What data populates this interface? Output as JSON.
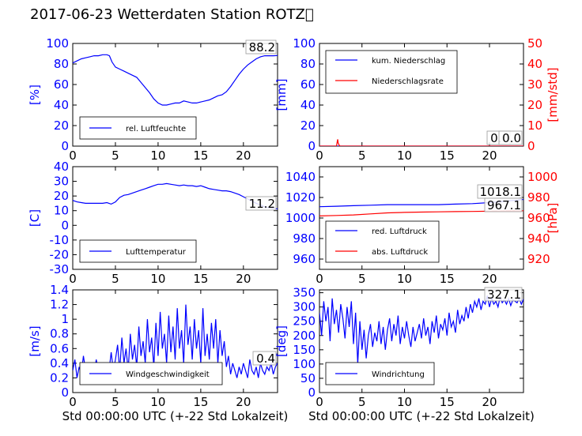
{
  "title": "2017-06-23 Wetterdaten Station ROTZ",
  "title_suffix": "􏰀",
  "xlabel": "Std 00:00:00 UTC (+-22 Std Lokalzeit)",
  "colors": {
    "primary": "#0000ff",
    "secondary": "#ff0000",
    "axes": "#000000"
  },
  "chart_data": [
    {
      "id": "humidity",
      "type": "line",
      "ylabel": "[%]",
      "xlim": [
        0,
        24
      ],
      "ylim": [
        0,
        100
      ],
      "xticks": [
        0,
        5,
        10,
        15,
        20
      ],
      "yticks": [
        0,
        20,
        40,
        60,
        80,
        100
      ],
      "legend": {
        "placement": "lower-left",
        "entries": [
          "rel. Luftfeuchte"
        ]
      },
      "annotations": [
        "88.2"
      ],
      "series": [
        {
          "name": "rel. Luftfeuchte",
          "color": "#0000ff",
          "x": [
            0,
            0.5,
            1,
            1.5,
            2,
            2.5,
            3,
            3.5,
            4,
            4.3,
            4.6,
            5,
            5.5,
            6,
            6.5,
            7,
            7.5,
            8,
            8.5,
            9,
            9.5,
            10,
            10.5,
            11,
            11.5,
            12,
            12.5,
            13,
            13.5,
            14,
            14.5,
            15,
            15.5,
            16,
            16.5,
            17,
            17.5,
            18,
            18.5,
            19,
            19.5,
            20,
            20.5,
            21,
            21.5,
            22,
            22.5,
            23,
            23.5,
            24
          ],
          "y": [
            81,
            83,
            85,
            86,
            87,
            88,
            88,
            89,
            89,
            88,
            82,
            77,
            75,
            73,
            71,
            69,
            67,
            62,
            57,
            52,
            46,
            42,
            40,
            40,
            41,
            42,
            42,
            44,
            43,
            42,
            42,
            43,
            44,
            45,
            47,
            49,
            50,
            53,
            58,
            64,
            70,
            75,
            79,
            82,
            85,
            87,
            88,
            88,
            88,
            88.2
          ]
        }
      ]
    },
    {
      "id": "precipitation",
      "type": "line",
      "ylabel": "[mm]",
      "ylabel_right": "[mm/std]",
      "xlim": [
        0,
        24
      ],
      "ylim": [
        0,
        100
      ],
      "ylim_right": [
        0,
        50
      ],
      "xticks": [
        0,
        5,
        10,
        15,
        20
      ],
      "yticks": [
        0,
        20,
        40,
        60,
        80,
        100
      ],
      "yticks_right": [
        0,
        10,
        20,
        30,
        40,
        50
      ],
      "legend": {
        "placement": "upper-left",
        "entries": [
          "kum. Niederschlag",
          "Niederschlagsrate"
        ]
      },
      "annotations": [
        "0.0",
        "0.0"
      ],
      "series": [
        {
          "name": "kum. Niederschlag",
          "color": "#0000ff",
          "axis": "left",
          "x": [
            0,
            24
          ],
          "y": [
            0,
            0
          ]
        },
        {
          "name": "Niederschlagsrate",
          "color": "#ff0000",
          "axis": "right",
          "x": [
            0,
            2.0,
            2.1,
            2.15,
            2.2,
            2.3,
            2.4,
            24
          ],
          "y": [
            0,
            0,
            2.5,
            3.3,
            1.6,
            0.6,
            0,
            0
          ]
        }
      ]
    },
    {
      "id": "temperature",
      "type": "line",
      "ylabel": "[C]",
      "xlim": [
        0,
        24
      ],
      "ylim": [
        -30,
        40
      ],
      "xticks": [
        0,
        5,
        10,
        15,
        20
      ],
      "yticks": [
        -30,
        -20,
        -10,
        0,
        10,
        20,
        30,
        40
      ],
      "legend": {
        "placement": "lower-left",
        "entries": [
          "Lufttemperatur"
        ]
      },
      "annotations": [
        "11.2"
      ],
      "series": [
        {
          "name": "Lufttemperatur",
          "color": "#0000ff",
          "x": [
            0,
            0.5,
            1,
            1.5,
            2,
            2.5,
            3,
            3.5,
            4,
            4.5,
            5,
            5.5,
            6,
            6.5,
            7,
            7.5,
            8,
            8.5,
            9,
            9.5,
            10,
            10.5,
            11,
            11.5,
            12,
            12.5,
            13,
            13.5,
            14,
            14.5,
            15,
            15.5,
            16,
            16.5,
            17,
            17.5,
            18,
            18.5,
            19,
            19.5,
            20,
            20.5,
            21,
            21.5,
            22,
            22.5,
            23,
            23.5,
            24
          ],
          "y": [
            17,
            16,
            15.5,
            15,
            15,
            15,
            15,
            15,
            15.5,
            14.5,
            16,
            19,
            20.5,
            21,
            22,
            23,
            24,
            25,
            26,
            27,
            28,
            28,
            28.5,
            28,
            27.5,
            27,
            27.5,
            27,
            27,
            26.5,
            27,
            26,
            25,
            24.5,
            24,
            23.5,
            23.5,
            23,
            22,
            21,
            19.5,
            18,
            16.5,
            15,
            14,
            12.5,
            12,
            11.5,
            11.2
          ]
        }
      ]
    },
    {
      "id": "pressure",
      "type": "line",
      "ylabel_right": "[hPa]",
      "xlim": [
        0,
        24
      ],
      "ylim": [
        950,
        1050
      ],
      "ylim_right": [
        910,
        1010
      ],
      "xticks": [
        0,
        5,
        10,
        15,
        20
      ],
      "yticks": [
        960,
        980,
        1000,
        1020,
        1040
      ],
      "yticks_right": [
        920,
        940,
        960,
        980,
        1000
      ],
      "legend": {
        "placement": "lower-left",
        "entries": [
          "red. Luftdruck",
          "abs. Luftdruck"
        ]
      },
      "annotations": [
        "1018.1",
        "967.1"
      ],
      "series": [
        {
          "name": "red. Luftdruck",
          "color": "#0000ff",
          "axis": "left",
          "x": [
            0,
            2,
            4,
            6,
            8,
            10,
            12,
            14,
            16,
            18,
            20,
            22,
            24
          ],
          "y": [
            1011,
            1011.5,
            1012,
            1012.5,
            1013,
            1013,
            1013,
            1013,
            1013.5,
            1014,
            1015,
            1016.5,
            1018.1
          ]
        },
        {
          "name": "abs. Luftdruck",
          "color": "#ff0000",
          "axis": "right",
          "x": [
            0,
            2,
            4,
            6,
            8,
            10,
            12,
            14,
            16,
            18,
            20,
            22,
            24
          ],
          "y": [
            962,
            962.5,
            963,
            964,
            965,
            965.5,
            965.8,
            966,
            966.2,
            966.4,
            966.6,
            966.9,
            967.1
          ]
        }
      ]
    },
    {
      "id": "windspeed",
      "type": "line",
      "ylabel": "[m/s]",
      "xlim": [
        0,
        24
      ],
      "ylim": [
        0,
        1.4
      ],
      "xticks": [
        0,
        5,
        10,
        15,
        20
      ],
      "yticks": [
        0,
        0.2,
        0.4,
        0.6,
        0.8,
        1.0,
        1.2,
        1.4
      ],
      "legend": {
        "placement": "lower-left",
        "entries": [
          "Windgeschwindigkeit"
        ]
      },
      "annotations": [
        "0.4"
      ],
      "series": [
        {
          "name": "Windgeschwindigkeit",
          "color": "#0000ff",
          "x": [
            0,
            0.25,
            0.5,
            0.75,
            1,
            1.25,
            1.5,
            1.75,
            2,
            2.25,
            2.5,
            2.75,
            3,
            3.25,
            3.5,
            3.75,
            4,
            4.25,
            4.5,
            4.75,
            5,
            5.25,
            5.5,
            5.75,
            6,
            6.25,
            6.5,
            6.75,
            7,
            7.25,
            7.5,
            7.75,
            8,
            8.25,
            8.5,
            8.75,
            9,
            9.25,
            9.5,
            9.75,
            10,
            10.25,
            10.5,
            10.75,
            11,
            11.25,
            11.5,
            11.75,
            12,
            12.25,
            12.5,
            12.75,
            13,
            13.25,
            13.5,
            13.75,
            14,
            14.25,
            14.5,
            14.75,
            15,
            15.25,
            15.5,
            15.75,
            16,
            16.25,
            16.5,
            16.75,
            17,
            17.25,
            17.5,
            17.75,
            18,
            18.25,
            18.5,
            18.75,
            19,
            19.25,
            19.5,
            19.75,
            20,
            20.25,
            20.5,
            20.75,
            21,
            21.25,
            21.5,
            21.75,
            22,
            22.25,
            22.5,
            22.75,
            23,
            23.25,
            23.5,
            23.75,
            24
          ],
          "y": [
            0.3,
            0.45,
            0.2,
            0.35,
            0.25,
            0.5,
            0.3,
            0.2,
            0.4,
            0.3,
            0.25,
            0.45,
            0.3,
            0.2,
            0.35,
            0.25,
            0.4,
            0.3,
            0.55,
            0.3,
            0.45,
            0.65,
            0.3,
            0.75,
            0.4,
            0.6,
            0.3,
            0.8,
            0.45,
            0.65,
            0.35,
            0.9,
            0.5,
            0.7,
            0.4,
            1.0,
            0.55,
            0.75,
            0.35,
            0.95,
            0.5,
            1.1,
            0.6,
            0.8,
            0.4,
            1.05,
            0.55,
            0.9,
            0.45,
            1.15,
            0.6,
            0.85,
            0.4,
            1.2,
            0.65,
            0.9,
            0.45,
            1.0,
            0.6,
            0.85,
            0.4,
            1.15,
            0.5,
            0.8,
            0.45,
            0.95,
            0.6,
            1.0,
            0.4,
            0.85,
            0.5,
            0.7,
            0.35,
            0.5,
            0.25,
            0.4,
            0.3,
            0.2,
            0.35,
            0.25,
            0.4,
            0.3,
            0.2,
            0.45,
            0.3,
            0.25,
            0.35,
            0.2,
            0.4,
            0.3,
            0.25,
            0.35,
            0.3,
            0.4,
            0.25,
            0.35,
            0.4
          ]
        }
      ]
    },
    {
      "id": "winddirection",
      "type": "line",
      "ylabel": "[deg]",
      "xlim": [
        0,
        24
      ],
      "ylim": [
        0,
        360
      ],
      "xticks": [
        0,
        5,
        10,
        15,
        20
      ],
      "yticks": [
        0,
        50,
        100,
        150,
        200,
        250,
        300,
        350
      ],
      "legend": {
        "placement": "lower-left",
        "entries": [
          "Windrichtung"
        ]
      },
      "annotations": [
        "327.1"
      ],
      "series": [
        {
          "name": "Windrichtung",
          "color": "#0000ff",
          "x": [
            0,
            0.25,
            0.5,
            0.75,
            1,
            1.25,
            1.5,
            1.75,
            2,
            2.25,
            2.5,
            2.75,
            3,
            3.25,
            3.5,
            3.75,
            4,
            4.25,
            4.5,
            4.75,
            5,
            5.25,
            5.5,
            5.75,
            6,
            6.25,
            6.5,
            6.75,
            7,
            7.25,
            7.5,
            7.75,
            8,
            8.25,
            8.5,
            8.75,
            9,
            9.25,
            9.5,
            9.75,
            10,
            10.25,
            10.5,
            10.75,
            11,
            11.25,
            11.5,
            11.75,
            12,
            12.25,
            12.5,
            12.75,
            13,
            13.25,
            13.5,
            13.75,
            14,
            14.25,
            14.5,
            14.75,
            15,
            15.25,
            15.5,
            15.75,
            16,
            16.25,
            16.5,
            16.75,
            17,
            17.25,
            17.5,
            17.75,
            18,
            18.25,
            18.5,
            18.75,
            19,
            19.25,
            19.5,
            19.75,
            20,
            20.25,
            20.5,
            20.75,
            21,
            21.25,
            21.5,
            21.75,
            22,
            22.25,
            22.5,
            22.75,
            23,
            23.25,
            23.5,
            23.75,
            24
          ],
          "y": [
            280,
            200,
            320,
            250,
            300,
            180,
            330,
            240,
            290,
            210,
            310,
            260,
            190,
            300,
            230,
            320,
            170,
            280,
            100,
            250,
            150,
            220,
            120,
            200,
            240,
            160,
            210,
            180,
            250,
            170,
            230,
            150,
            220,
            260,
            180,
            240,
            200,
            270,
            170,
            230,
            190,
            250,
            200,
            160,
            230,
            180,
            210,
            240,
            190,
            260,
            200,
            230,
            170,
            250,
            210,
            270,
            190,
            240,
            220,
            260,
            200,
            280,
            230,
            250,
            210,
            290,
            240,
            270,
            250,
            300,
            260,
            310,
            280,
            320,
            300,
            330,
            290,
            320,
            310,
            340,
            300,
            330,
            310,
            320,
            300,
            335,
            315,
            325,
            310,
            330,
            305,
            325,
            320,
            315,
            330,
            310,
            327.1
          ]
        }
      ]
    }
  ]
}
